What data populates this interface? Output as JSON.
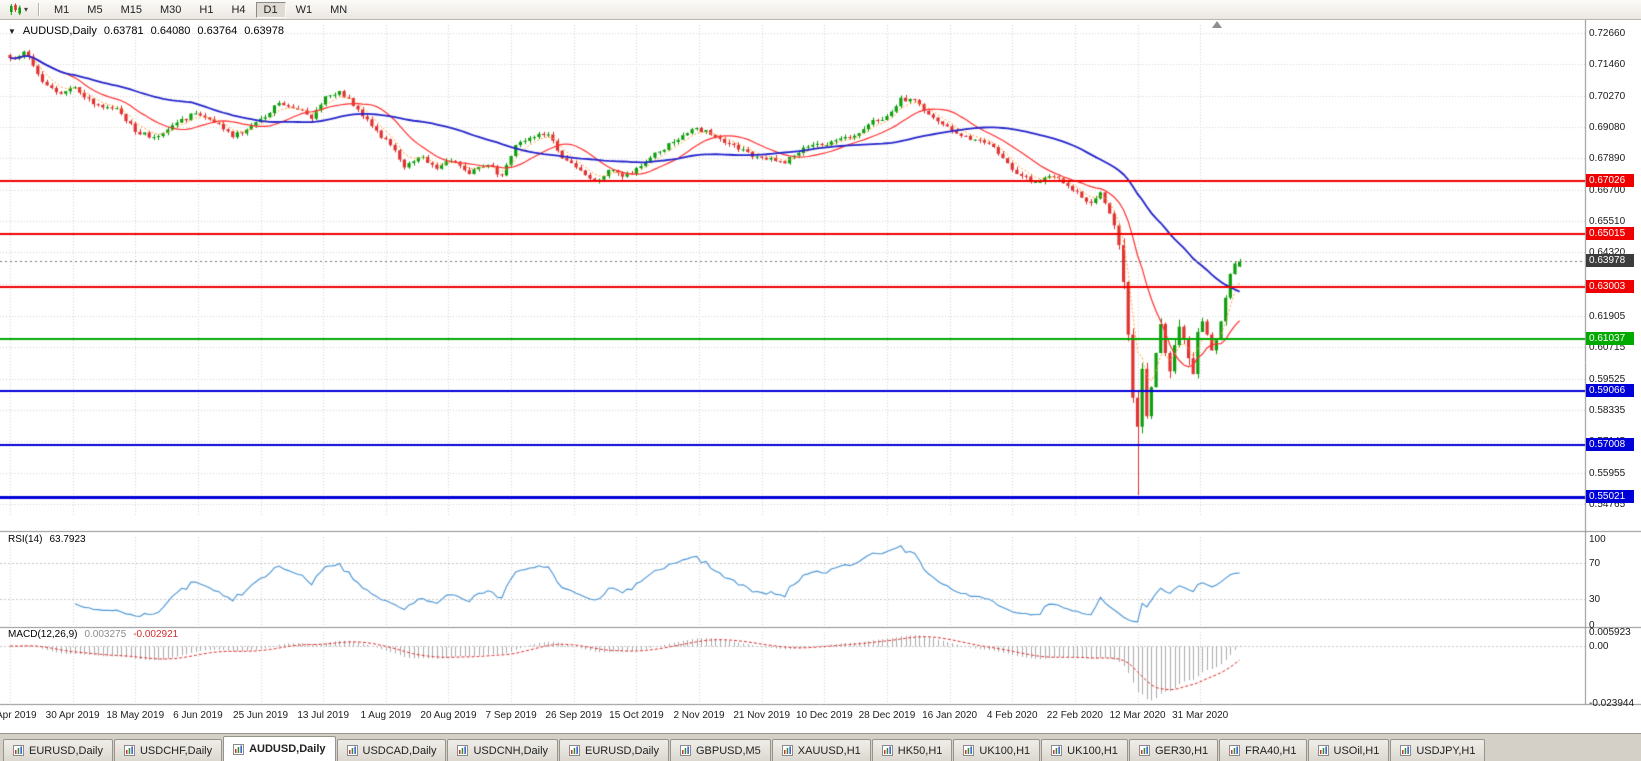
{
  "icons": {
    "caret_down": "▼",
    "toolbar_caret": "▾"
  },
  "toolbar": {
    "timeframes": [
      {
        "label": "M1",
        "active": false
      },
      {
        "label": "M5",
        "active": false
      },
      {
        "label": "M15",
        "active": false
      },
      {
        "label": "M30",
        "active": false
      },
      {
        "label": "H1",
        "active": false
      },
      {
        "label": "H4",
        "active": false
      },
      {
        "label": "D1",
        "active": true
      },
      {
        "label": "W1",
        "active": false
      },
      {
        "label": "MN",
        "active": false
      }
    ]
  },
  "chart": {
    "title": "AUDUSD,Daily",
    "ohlc": {
      "open": "0.63781",
      "high": "0.64080",
      "low": "0.63764",
      "close": "0.63978"
    },
    "price_axis": [
      "0.72660",
      "0.71460",
      "0.70270",
      "0.69080",
      "0.67890",
      "0.66700",
      "0.65510",
      "0.64320",
      "0.63130",
      "0.61905",
      "0.60715",
      "0.59525",
      "0.58335",
      "0.57145",
      "0.55955",
      "0.54765"
    ],
    "date_axis": [
      "11 Apr 2019",
      "30 Apr 2019",
      "18 May 2019",
      "6 Jun 2019",
      "25 Jun 2019",
      "13 Jul 2019",
      "1 Aug 2019",
      "20 Aug 2019",
      "7 Sep 2019",
      "26 Sep 2019",
      "15 Oct 2019",
      "2 Nov 2019",
      "21 Nov 2019",
      "10 Dec 2019",
      "28 Dec 2019",
      "16 Jan 2020",
      "4 Feb 2020",
      "22 Feb 2020",
      "12 Mar 2020",
      "31 Mar 2020"
    ],
    "hlines": [
      {
        "label": "0.67026",
        "value": 0.67026,
        "color": "#F00000",
        "width": 2
      },
      {
        "label": "0.65015",
        "value": 0.65015,
        "color": "#F00000",
        "width": 2
      },
      {
        "label": "0.63003",
        "value": 0.63003,
        "color": "#F00000",
        "width": 2
      },
      {
        "label": "0.61037",
        "value": 0.61037,
        "color": "#00AA00",
        "width": 2
      },
      {
        "label": "0.59066",
        "value": 0.59066,
        "color": "#0000D8",
        "width": 2
      },
      {
        "label": "0.57008",
        "value": 0.57008,
        "color": "#0000D8",
        "width": 2
      },
      {
        "label": "0.55021",
        "value": 0.55021,
        "color": "#0000D8",
        "width": 3
      }
    ],
    "current_price": {
      "label": "0.63978",
      "value": 0.63978,
      "box_color": "#3C3C3C"
    }
  },
  "rsi": {
    "label": "RSI(14)",
    "value": "63.7923",
    "levels": [
      "100",
      "70",
      "30",
      "0"
    ]
  },
  "macd": {
    "label": "MACD(12,26,9)",
    "value_main": "0.003275",
    "value_signal": "-0.002921",
    "levels": [
      "0.005923",
      "0.00",
      "-0.023944"
    ],
    "scale_max": 0.005923,
    "scale_min": -0.023944
  },
  "tabs": [
    {
      "label": "EURUSD,Daily",
      "active": false
    },
    {
      "label": "USDCHF,Daily",
      "active": false
    },
    {
      "label": "AUDUSD,Daily",
      "active": true
    },
    {
      "label": "USDCAD,Daily",
      "active": false
    },
    {
      "label": "USDCNH,Daily",
      "active": false
    },
    {
      "label": "EURUSD,Daily",
      "active": false
    },
    {
      "label": "GBPUSD,M5",
      "active": false
    },
    {
      "label": "XAUUSD,H1",
      "active": false
    },
    {
      "label": "HK50,H1",
      "active": false
    },
    {
      "label": "UK100,H1",
      "active": false
    },
    {
      "label": "UK100,H1",
      "active": false
    },
    {
      "label": "GER30,H1",
      "active": false
    },
    {
      "label": "FRA40,H1",
      "active": false
    },
    {
      "label": "USOil,H1",
      "active": false
    },
    {
      "label": "USDJPY,H1",
      "active": false
    }
  ],
  "colors": {
    "up": "#0E9E0E",
    "down": "#E03232",
    "ma_fast": "#FFA63C",
    "ma_mid": "#FF3232",
    "ma_slow": "#2424CC",
    "rsi": "#4C96D6",
    "macd_hist": "#ABABAB",
    "macd_signal": "#E03232",
    "grid": "#D6D6D6"
  },
  "chart_data": {
    "type": "candlestick",
    "symbol": "AUDUSD",
    "timeframe": "Daily",
    "title": "AUDUSD,Daily 0.63781 0.64080 0.63764 0.63978",
    "candle_count": 266,
    "ylim": [
      0.5427,
      0.7296
    ],
    "x_range": [
      "11 Apr 2019",
      "13 Apr 2020"
    ],
    "x_tick_labels": [
      "11 Apr 2019",
      "30 Apr 2019",
      "18 May 2019",
      "6 Jun 2019",
      "25 Jun 2019",
      "13 Jul 2019",
      "1 Aug 2019",
      "20 Aug 2019",
      "7 Sep 2019",
      "26 Sep 2019",
      "15 Oct 2019",
      "2 Nov 2019",
      "21 Nov 2019",
      "10 Dec 2019",
      "28 Dec 2019",
      "16 Jan 2020",
      "4 Feb 2020",
      "22 Feb 2020",
      "12 Mar 2020",
      "31 Mar 2020"
    ],
    "y_tick_labels": [
      "0.72660",
      "0.71460",
      "0.70270",
      "0.69080",
      "0.67890",
      "0.66700",
      "0.65510",
      "0.64320",
      "0.63130",
      "0.61905",
      "0.60715",
      "0.59525",
      "0.58335",
      "0.57145",
      "0.55955",
      "0.54765"
    ],
    "last_candle": {
      "open": 0.63781,
      "high": 0.6408,
      "low": 0.63764,
      "close": 0.63978
    },
    "crash_low": 0.551,
    "crash_low_index": 243,
    "close_keypoints": [
      [
        0,
        0.717
      ],
      [
        3,
        0.7195
      ],
      [
        7,
        0.708
      ],
      [
        11,
        0.7035
      ],
      [
        14,
        0.706
      ],
      [
        18,
        0.6995
      ],
      [
        23,
        0.698
      ],
      [
        27,
        0.689
      ],
      [
        31,
        0.687
      ],
      [
        36,
        0.6925
      ],
      [
        40,
        0.696
      ],
      [
        44,
        0.6925
      ],
      [
        48,
        0.687
      ],
      [
        54,
        0.694
      ],
      [
        58,
        0.7
      ],
      [
        62,
        0.6975
      ],
      [
        65,
        0.694
      ],
      [
        68,
        0.7025
      ],
      [
        71,
        0.7045
      ],
      [
        75,
        0.6975
      ],
      [
        79,
        0.6895
      ],
      [
        82,
        0.684
      ],
      [
        85,
        0.6755
      ],
      [
        89,
        0.6795
      ],
      [
        92,
        0.675
      ],
      [
        95,
        0.678
      ],
      [
        99,
        0.673
      ],
      [
        103,
        0.6765
      ],
      [
        106,
        0.6725
      ],
      [
        109,
        0.684
      ],
      [
        113,
        0.687
      ],
      [
        116,
        0.688
      ],
      [
        119,
        0.679
      ],
      [
        122,
        0.6755
      ],
      [
        126,
        0.6705
      ],
      [
        129,
        0.6745
      ],
      [
        132,
        0.672
      ],
      [
        136,
        0.676
      ],
      [
        140,
        0.6815
      ],
      [
        144,
        0.686
      ],
      [
        148,
        0.6905
      ],
      [
        152,
        0.687
      ],
      [
        156,
        0.684
      ],
      [
        160,
        0.6795
      ],
      [
        163,
        0.6785
      ],
      [
        167,
        0.677
      ],
      [
        171,
        0.683
      ],
      [
        175,
        0.684
      ],
      [
        179,
        0.6865
      ],
      [
        183,
        0.6885
      ],
      [
        186,
        0.6935
      ],
      [
        189,
        0.695
      ],
      [
        192,
        0.702
      ],
      [
        196,
        0.6995
      ],
      [
        200,
        0.693
      ],
      [
        203,
        0.6895
      ],
      [
        207,
        0.686
      ],
      [
        211,
        0.6845
      ],
      [
        214,
        0.679
      ],
      [
        217,
        0.673
      ],
      [
        221,
        0.67
      ],
      [
        225,
        0.672
      ],
      [
        228,
        0.6685
      ],
      [
        231,
        0.664
      ],
      [
        233,
        0.662
      ],
      [
        235,
        0.666
      ],
      [
        237,
        0.658
      ],
      [
        239,
        0.646
      ],
      [
        240,
        0.632
      ],
      [
        241,
        0.612
      ],
      [
        242,
        0.588
      ],
      [
        243,
        0.577
      ],
      [
        244,
        0.599
      ],
      [
        245,
        0.581
      ],
      [
        246,
        0.592
      ],
      [
        247,
        0.605
      ],
      [
        248,
        0.616
      ],
      [
        249,
        0.605
      ],
      [
        250,
        0.598
      ],
      [
        251,
        0.608
      ],
      [
        252,
        0.615
      ],
      [
        253,
        0.61
      ],
      [
        254,
        0.603
      ],
      [
        255,
        0.597
      ],
      [
        256,
        0.613
      ],
      [
        257,
        0.617
      ],
      [
        258,
        0.612
      ],
      [
        259,
        0.606
      ],
      [
        260,
        0.61
      ],
      [
        261,
        0.617
      ],
      [
        262,
        0.626
      ],
      [
        263,
        0.635
      ],
      [
        264,
        0.639
      ],
      [
        265,
        0.63978
      ]
    ],
    "moving_averages": [
      {
        "period": 5,
        "method": "EMA",
        "color": "#FFA63C",
        "style": "dotted"
      },
      {
        "period": 13,
        "method": "SMA",
        "color": "#FF3232",
        "style": "solid"
      },
      {
        "period": 40,
        "method": "SMA",
        "color": "#2424CC",
        "style": "solid"
      }
    ],
    "horizontal_levels": [
      0.67026,
      0.65015,
      0.63003,
      0.61037,
      0.59066,
      0.57008,
      0.55021
    ],
    "indicators": [
      {
        "name": "RSI",
        "period": 14,
        "current": 63.7923,
        "levels": [
          70,
          30
        ],
        "range": [
          0,
          100
        ]
      },
      {
        "name": "MACD",
        "fast": 12,
        "slow": 26,
        "signal": 9,
        "current_main": 0.003275,
        "current_signal": -0.002921,
        "scale": [
          -0.023944,
          0.005923
        ]
      }
    ]
  }
}
